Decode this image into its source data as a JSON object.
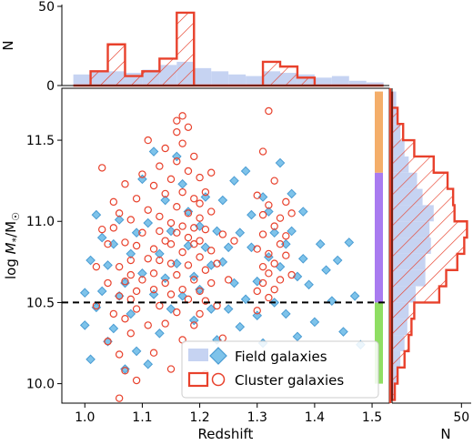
{
  "chart_data": [
    {
      "panel": "main",
      "type": "scatter",
      "xlabel": "Redshift",
      "ylabel_main": "log ",
      "ylabel_M": "M",
      "ylabel_sub": "*",
      "ylabel_rest": "/M",
      "ylabel_sun": "☉",
      "xlim": [
        0.96,
        1.53
      ],
      "ylim": [
        9.88,
        11.82
      ],
      "x_ticks": [
        1.0,
        1.1,
        1.2,
        1.3,
        1.4,
        1.5
      ],
      "x_tick_labels": [
        "1.0",
        "1.1",
        "1.2",
        "1.3",
        "1.4",
        "1.5"
      ],
      "y_ticks": [
        10.0,
        10.5,
        11.0,
        11.5
      ],
      "y_tick_labels": [
        "10.0",
        "10.5",
        "11.0",
        "11.5"
      ],
      "threshold": 10.5,
      "legend_position": "lower-right",
      "grid": false,
      "mass_bins": [
        {
          "from": 10.0,
          "to": 10.5,
          "color": "#8fde63"
        },
        {
          "from": 10.5,
          "to": 11.3,
          "color": "#a97bf0"
        },
        {
          "from": 11.3,
          "to": 11.8,
          "color": "#f4ae6a"
        }
      ],
      "series": [
        {
          "name": "Field galaxies",
          "marker": "diamond",
          "color": "#7ec3ea",
          "edge": "#4a9cd3",
          "points": [
            [
              1.0,
              10.56
            ],
            [
              1.0,
              10.36
            ],
            [
              1.01,
              10.15
            ],
            [
              1.01,
              10.76
            ],
            [
              1.02,
              10.47
            ],
            [
              1.02,
              11.04
            ],
            [
              1.03,
              10.57
            ],
            [
              1.03,
              10.9
            ],
            [
              1.04,
              10.26
            ],
            [
              1.04,
              10.73
            ],
            [
              1.05,
              10.34
            ],
            [
              1.05,
              10.86
            ],
            [
              1.06,
              10.54
            ],
            [
              1.06,
              11.01
            ],
            [
              1.07,
              10.09
            ],
            [
              1.07,
              10.62
            ],
            [
              1.08,
              10.8
            ],
            [
              1.08,
              10.43
            ],
            [
              1.09,
              10.93
            ],
            [
              1.09,
              10.2
            ],
            [
              1.1,
              10.68
            ],
            [
              1.1,
              11.26
            ],
            [
              1.11,
              10.12
            ],
            [
              1.11,
              10.99
            ],
            [
              1.12,
              11.43
            ],
            [
              1.12,
              10.55
            ],
            [
              1.13,
              10.8
            ],
            [
              1.13,
              10.31
            ],
            [
              1.14,
              11.13
            ],
            [
              1.14,
              10.65
            ],
            [
              1.15,
              10.94
            ],
            [
              1.15,
              10.46
            ],
            [
              1.16,
              11.4
            ],
            [
              1.16,
              10.74
            ],
            [
              1.17,
              11.23
            ],
            [
              1.17,
              10.54
            ],
            [
              1.18,
              10.85
            ],
            [
              1.18,
              11.06
            ],
            [
              1.19,
              10.66
            ],
            [
              1.19,
              10.39
            ],
            [
              1.2,
              10.97
            ],
            [
              1.2,
              10.58
            ],
            [
              1.21,
              10.84
            ],
            [
              1.21,
              11.15
            ],
            [
              1.22,
              10.46
            ],
            [
              1.22,
              10.73
            ],
            [
              1.23,
              10.94
            ],
            [
              1.23,
              10.27
            ],
            [
              1.24,
              11.13
            ],
            [
              1.24,
              10.75
            ],
            [
              1.25,
              10.46
            ],
            [
              1.25,
              10.84
            ],
            [
              1.26,
              11.25
            ],
            [
              1.26,
              10.62
            ],
            [
              1.27,
              10.93
            ],
            [
              1.27,
              10.35
            ],
            [
              1.28,
              11.31
            ],
            [
              1.28,
              10.52
            ],
            [
              1.29,
              10.84
            ],
            [
              1.29,
              11.04
            ],
            [
              1.3,
              10.63
            ],
            [
              1.3,
              10.42
            ],
            [
              1.31,
              11.15
            ],
            [
              1.31,
              10.25
            ],
            [
              1.32,
              10.78
            ],
            [
              1.32,
              11.06
            ],
            [
              1.33,
              10.5
            ],
            [
              1.33,
              10.93
            ],
            [
              1.34,
              11.36
            ],
            [
              1.34,
              10.72
            ],
            [
              1.35,
              10.86
            ],
            [
              1.35,
              10.43
            ],
            [
              1.36,
              11.17
            ],
            [
              1.36,
              10.94
            ],
            [
              1.37,
              10.66
            ],
            [
              1.37,
              10.29
            ],
            [
              1.38,
              11.06
            ],
            [
              1.38,
              10.77
            ],
            [
              1.39,
              10.61
            ],
            [
              1.4,
              10.38
            ],
            [
              1.41,
              10.86
            ],
            [
              1.42,
              10.7
            ],
            [
              1.43,
              10.51
            ],
            [
              1.44,
              10.76
            ],
            [
              1.45,
              10.32
            ],
            [
              1.46,
              10.87
            ],
            [
              1.47,
              10.54
            ],
            [
              1.48,
              10.24
            ]
          ]
        },
        {
          "name": "Cluster galaxies",
          "marker": "circle",
          "color": "#ffffff",
          "edge": "#e8412c",
          "points": [
            [
              1.02,
              10.48
            ],
            [
              1.02,
              10.72
            ],
            [
              1.03,
              10.95
            ],
            [
              1.03,
              11.33
            ],
            [
              1.04,
              10.62
            ],
            [
              1.04,
              10.26
            ],
            [
              1.04,
              10.86
            ],
            [
              1.05,
              11.12
            ],
            [
              1.05,
              10.43
            ],
            [
              1.05,
              10.96
            ],
            [
              1.06,
              10.54
            ],
            [
              1.06,
              10.72
            ],
            [
              1.06,
              10.18
            ],
            [
              1.06,
              11.05
            ],
            [
              1.06,
              9.91
            ],
            [
              1.07,
              10.63
            ],
            [
              1.07,
              10.87
            ],
            [
              1.07,
              11.23
            ],
            [
              1.07,
              10.4
            ],
            [
              1.07,
              10.08
            ],
            [
              1.08,
              10.76
            ],
            [
              1.08,
              10.52
            ],
            [
              1.08,
              11.01
            ],
            [
              1.08,
              10.31
            ],
            [
              1.08,
              10.67
            ],
            [
              1.09,
              10.85
            ],
            [
              1.09,
              10.57
            ],
            [
              1.09,
              11.14
            ],
            [
              1.09,
              10.46
            ],
            [
              1.09,
              10.02
            ],
            [
              1.1,
              11.29
            ],
            [
              1.1,
              10.93
            ],
            [
              1.1,
              10.64
            ],
            [
              1.11,
              10.77
            ],
            [
              1.11,
              10.36
            ],
            [
              1.11,
              11.07
            ],
            [
              1.11,
              11.5
            ],
            [
              1.12,
              10.58
            ],
            [
              1.12,
              10.83
            ],
            [
              1.12,
              11.22
            ],
            [
              1.12,
              10.19
            ],
            [
              1.12,
              10.68
            ],
            [
              1.13,
              10.94
            ],
            [
              1.13,
              11.34
            ],
            [
              1.13,
              10.48
            ],
            [
              1.13,
              10.76
            ],
            [
              1.13,
              11.03
            ],
            [
              1.14,
              10.62
            ],
            [
              1.14,
              11.17
            ],
            [
              1.14,
              10.88
            ],
            [
              1.14,
              10.37
            ],
            [
              1.14,
              11.45
            ],
            [
              1.15,
              10.74
            ],
            [
              1.15,
              10.99
            ],
            [
              1.15,
              11.26
            ],
            [
              1.15,
              10.55
            ],
            [
              1.15,
              10.09
            ],
            [
              1.15,
              10.86
            ],
            [
              1.16,
              11.09
            ],
            [
              1.16,
              11.37
            ],
            [
              1.16,
              10.67
            ],
            [
              1.16,
              10.93
            ],
            [
              1.16,
              11.55
            ],
            [
              1.16,
              10.44
            ],
            [
              1.16,
              11.62
            ],
            [
              1.17,
              10.81
            ],
            [
              1.17,
              11.18
            ],
            [
              1.17,
              10.58
            ],
            [
              1.17,
              11.48
            ],
            [
              1.17,
              10.97
            ],
            [
              1.17,
              10.27
            ],
            [
              1.17,
              11.65
            ],
            [
              1.18,
              10.73
            ],
            [
              1.18,
              11.05
            ],
            [
              1.18,
              10.9
            ],
            [
              1.18,
              11.31
            ],
            [
              1.18,
              10.52
            ],
            [
              1.18,
              11.58
            ],
            [
              1.19,
              10.86
            ],
            [
              1.19,
              11.14
            ],
            [
              1.19,
              10.64
            ],
            [
              1.19,
              11.4
            ],
            [
              1.19,
              10.96
            ],
            [
              1.19,
              10.36
            ],
            [
              1.2,
              10.78
            ],
            [
              1.2,
              11.02
            ],
            [
              1.2,
              11.27
            ],
            [
              1.2,
              10.57
            ],
            [
              1.2,
              10.88
            ],
            [
              1.2,
              11.11
            ],
            [
              1.2,
              10.43
            ],
            [
              1.21,
              10.7
            ],
            [
              1.21,
              10.95
            ],
            [
              1.21,
              11.18
            ],
            [
              1.21,
              10.51
            ],
            [
              1.21,
              10.06
            ],
            [
              1.22,
              10.82
            ],
            [
              1.22,
              11.06
            ],
            [
              1.22,
              10.62
            ],
            [
              1.22,
              11.3
            ],
            [
              1.23,
              10.74
            ],
            [
              1.23,
              10.48
            ],
            [
              1.24,
              10.92
            ],
            [
              1.24,
              10.28
            ],
            [
              1.25,
              10.64
            ],
            [
              1.26,
              10.88
            ],
            [
              1.3,
              10.57
            ],
            [
              1.3,
              10.83
            ],
            [
              1.3,
              11.16
            ],
            [
              1.3,
              10.45
            ],
            [
              1.31,
              10.72
            ],
            [
              1.31,
              11.04
            ],
            [
              1.31,
              10.62
            ],
            [
              1.31,
              10.92
            ],
            [
              1.31,
              11.43
            ],
            [
              1.32,
              10.8
            ],
            [
              1.32,
              10.53
            ],
            [
              1.32,
              11.1
            ],
            [
              1.32,
              10.68
            ],
            [
              1.32,
              11.68
            ],
            [
              1.33,
              10.97
            ],
            [
              1.33,
              10.74
            ],
            [
              1.33,
              10.58
            ],
            [
              1.33,
              11.25
            ],
            [
              1.34,
              10.86
            ],
            [
              1.34,
              11.02
            ],
            [
              1.34,
              10.64
            ],
            [
              1.35,
              11.12
            ],
            [
              1.35,
              10.91
            ],
            [
              1.35,
              10.79
            ],
            [
              1.36,
              11.05
            ],
            [
              1.36,
              10.67
            ]
          ]
        }
      ]
    },
    {
      "panel": "top",
      "type": "histogram",
      "ylabel": "N",
      "ylim": [
        0,
        50
      ],
      "y_ticks": [
        0,
        50
      ],
      "y_tick_labels": [
        "0",
        "50"
      ],
      "bin_edges": [
        0.98,
        1.01,
        1.04,
        1.07,
        1.1,
        1.13,
        1.16,
        1.19,
        1.22,
        1.25,
        1.28,
        1.31,
        1.34,
        1.37,
        1.4,
        1.43,
        1.46,
        1.49,
        1.52
      ],
      "field_counts": [
        7,
        9,
        9,
        8,
        10,
        13,
        15,
        11,
        9,
        7,
        6,
        9,
        8,
        7,
        5,
        6,
        3,
        2
      ],
      "cluster_counts": [
        0,
        9,
        26,
        6,
        9,
        17,
        46,
        0,
        0,
        0,
        0,
        15,
        12,
        5,
        0,
        0,
        0,
        0
      ]
    },
    {
      "panel": "right",
      "type": "histogram",
      "xlabel": "N",
      "x_ticks": [
        50
      ],
      "x_tick_labels": [
        "50"
      ],
      "xlim": [
        0,
        57
      ],
      "bin_edges": [
        9.9,
        10.0,
        10.1,
        10.2,
        10.3,
        10.4,
        10.5,
        10.6,
        10.7,
        10.8,
        10.9,
        11.0,
        11.1,
        11.2,
        11.3,
        11.4,
        11.5,
        11.6,
        11.7,
        11.8
      ],
      "field_counts": [
        2,
        4,
        6,
        9,
        11,
        12,
        17,
        24,
        24,
        28,
        27,
        30,
        22,
        18,
        12,
        9,
        6,
        4,
        3
      ],
      "cluster_counts": [
        2,
        4,
        9,
        12,
        14,
        16,
        34,
        39,
        47,
        52,
        54,
        45,
        44,
        40,
        30,
        16,
        8,
        4,
        0
      ]
    }
  ]
}
